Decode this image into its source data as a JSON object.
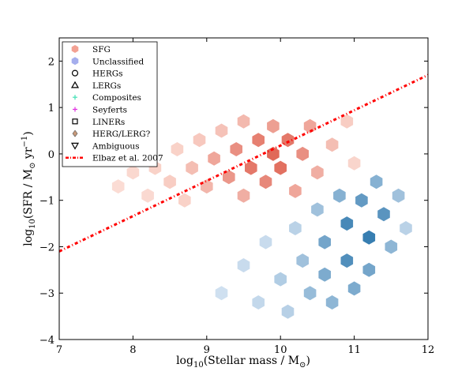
{
  "chart_data": {
    "type": "scatter",
    "xlabel": "log10(Stellar mass / M☉)",
    "ylabel": "log10(SFR / M☉ yr−1)",
    "xlim": [
      7,
      12
    ],
    "ylim": [
      -4,
      2.5
    ],
    "x_ticks": [
      7,
      8,
      9,
      10,
      11,
      12
    ],
    "x_tick_labels": [
      "7",
      "8",
      "9",
      "10",
      "11",
      "12"
    ],
    "y_ticks": [
      -4,
      -3,
      -2,
      -1,
      0,
      1,
      2
    ],
    "y_tick_labels": [
      "−4",
      "−3",
      "−2",
      "−1",
      "0",
      "1",
      "2"
    ],
    "grid": false,
    "legend_position": "top-left",
    "legend": [
      {
        "label": "SFG",
        "marker": "hexagon",
        "color": "#f08a78"
      },
      {
        "label": "Unclassified",
        "marker": "hexagon",
        "color": "#8f9ae8"
      },
      {
        "label": "HERGs",
        "marker": "circle-open",
        "color": "#000000"
      },
      {
        "label": "LERGs",
        "marker": "triangle-up-open",
        "color": "#000000"
      },
      {
        "label": "Composites",
        "marker": "plus",
        "color": "#3fe0b4"
      },
      {
        "label": "Seyferts",
        "marker": "plus",
        "color": "#e030e0"
      },
      {
        "label": "LINERs",
        "marker": "square-open",
        "color": "#000000"
      },
      {
        "label": "HERG/LERG?",
        "marker": "diamond",
        "color": "#c89a7a"
      },
      {
        "label": "Ambiguous",
        "marker": "triangle-down-open",
        "color": "#000000"
      },
      {
        "label": "Elbaz et al. 2007",
        "marker": "dash-dot-line",
        "color": "#ff0000"
      }
    ],
    "elbaz_line": {
      "x": [
        7,
        12
      ],
      "y": [
        -2.1,
        1.7
      ]
    },
    "sfg_density_peak": {
      "x": 9.9,
      "y": -0.2
    },
    "unclassified_density_peak": {
      "x": 11.0,
      "y": -1.6
    },
    "hexbin_sfg": [
      {
        "x": 7.8,
        "y": -0.7,
        "w": 0.05
      },
      {
        "x": 8.0,
        "y": -0.4,
        "w": 0.08
      },
      {
        "x": 8.2,
        "y": -0.9,
        "w": 0.07
      },
      {
        "x": 8.3,
        "y": -0.3,
        "w": 0.12
      },
      {
        "x": 8.5,
        "y": -0.6,
        "w": 0.15
      },
      {
        "x": 8.6,
        "y": 0.1,
        "w": 0.12
      },
      {
        "x": 8.7,
        "y": -1.0,
        "w": 0.12
      },
      {
        "x": 8.8,
        "y": -0.3,
        "w": 0.25
      },
      {
        "x": 8.9,
        "y": 0.3,
        "w": 0.18
      },
      {
        "x": 9.0,
        "y": -0.7,
        "w": 0.3
      },
      {
        "x": 9.1,
        "y": -0.1,
        "w": 0.4
      },
      {
        "x": 9.2,
        "y": 0.5,
        "w": 0.22
      },
      {
        "x": 9.3,
        "y": -0.5,
        "w": 0.5
      },
      {
        "x": 9.4,
        "y": 0.1,
        "w": 0.55
      },
      {
        "x": 9.5,
        "y": -0.9,
        "w": 0.35
      },
      {
        "x": 9.5,
        "y": 0.7,
        "w": 0.28
      },
      {
        "x": 9.6,
        "y": -0.3,
        "w": 0.7
      },
      {
        "x": 9.7,
        "y": 0.3,
        "w": 0.65
      },
      {
        "x": 9.8,
        "y": -0.6,
        "w": 0.6
      },
      {
        "x": 9.9,
        "y": 0.0,
        "w": 0.8
      },
      {
        "x": 9.9,
        "y": 0.6,
        "w": 0.45
      },
      {
        "x": 10.0,
        "y": -0.3,
        "w": 0.75
      },
      {
        "x": 10.1,
        "y": 0.3,
        "w": 0.7
      },
      {
        "x": 10.2,
        "y": -0.8,
        "w": 0.4
      },
      {
        "x": 10.3,
        "y": 0.0,
        "w": 0.55
      },
      {
        "x": 10.4,
        "y": 0.6,
        "w": 0.4
      },
      {
        "x": 10.5,
        "y": -0.4,
        "w": 0.35
      },
      {
        "x": 10.7,
        "y": 0.2,
        "w": 0.25
      },
      {
        "x": 10.9,
        "y": 0.7,
        "w": 0.15
      },
      {
        "x": 11.0,
        "y": -0.2,
        "w": 0.1
      }
    ],
    "hexbin_unclassified": [
      {
        "x": 9.2,
        "y": -3.0,
        "w": 0.08
      },
      {
        "x": 9.5,
        "y": -2.4,
        "w": 0.12
      },
      {
        "x": 9.7,
        "y": -3.2,
        "w": 0.15
      },
      {
        "x": 9.8,
        "y": -1.9,
        "w": 0.12
      },
      {
        "x": 10.0,
        "y": -2.7,
        "w": 0.25
      },
      {
        "x": 10.1,
        "y": -3.4,
        "w": 0.22
      },
      {
        "x": 10.2,
        "y": -1.6,
        "w": 0.2
      },
      {
        "x": 10.3,
        "y": -2.3,
        "w": 0.35
      },
      {
        "x": 10.4,
        "y": -3.0,
        "w": 0.4
      },
      {
        "x": 10.5,
        "y": -1.2,
        "w": 0.35
      },
      {
        "x": 10.6,
        "y": -1.9,
        "w": 0.6
      },
      {
        "x": 10.6,
        "y": -2.6,
        "w": 0.55
      },
      {
        "x": 10.7,
        "y": -3.2,
        "w": 0.45
      },
      {
        "x": 10.8,
        "y": -0.9,
        "w": 0.5
      },
      {
        "x": 10.9,
        "y": -1.5,
        "w": 0.85
      },
      {
        "x": 10.9,
        "y": -2.3,
        "w": 0.8
      },
      {
        "x": 11.0,
        "y": -2.9,
        "w": 0.55
      },
      {
        "x": 11.1,
        "y": -1.0,
        "w": 0.7
      },
      {
        "x": 11.2,
        "y": -1.8,
        "w": 0.95
      },
      {
        "x": 11.2,
        "y": -2.5,
        "w": 0.6
      },
      {
        "x": 11.3,
        "y": -0.6,
        "w": 0.5
      },
      {
        "x": 11.4,
        "y": -1.3,
        "w": 0.75
      },
      {
        "x": 11.5,
        "y": -2.0,
        "w": 0.45
      },
      {
        "x": 11.6,
        "y": -0.9,
        "w": 0.35
      },
      {
        "x": 11.7,
        "y": -1.6,
        "w": 0.2
      }
    ]
  }
}
